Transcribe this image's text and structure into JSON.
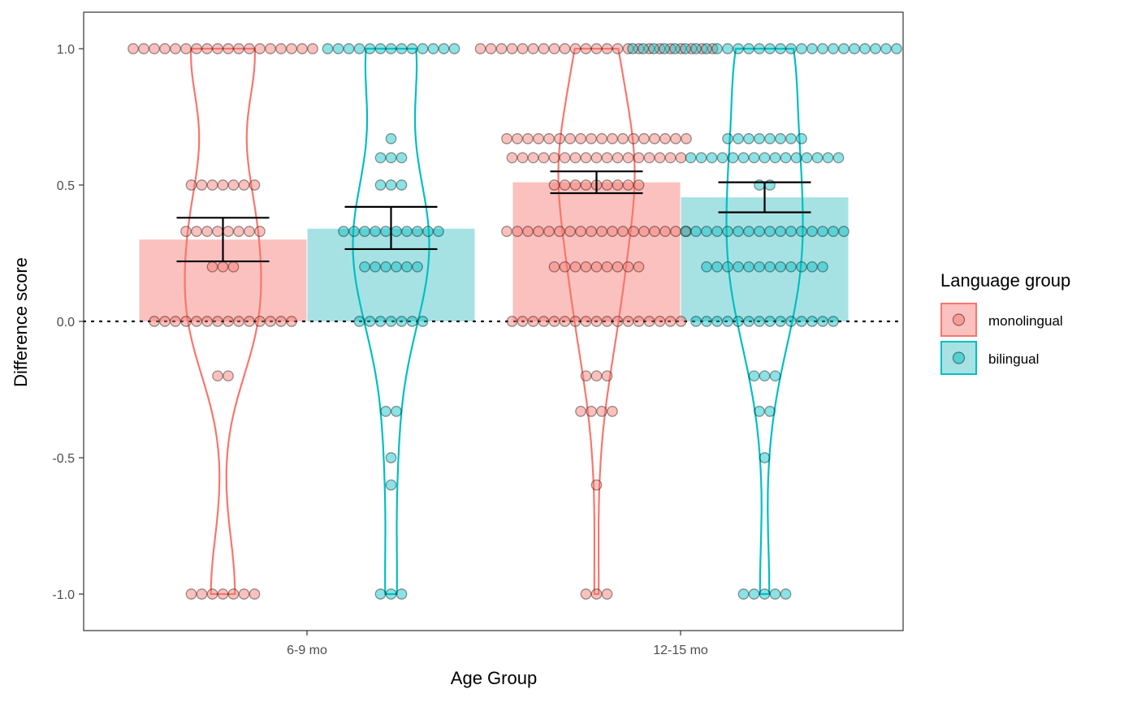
{
  "chart_data": {
    "type": "bar",
    "xlabel": "Age Group",
    "ylabel": "Difference score",
    "categories": [
      "6-9 mo",
      "12-15 mo"
    ],
    "ylim": [
      -1.1,
      1.14
    ],
    "yticks": [
      1.0,
      0.5,
      0.0,
      -0.5,
      -1.0
    ],
    "ytick_labels": [
      "1.0",
      "0.5",
      "0.0",
      "-0.5",
      "-1.0"
    ],
    "reference_line": 0,
    "grid": false,
    "legend": {
      "title": "Language group",
      "position": "right",
      "entries": [
        "monolingual",
        "bilingual"
      ]
    },
    "colors": {
      "monolingual": "#F8766D",
      "bilingual": "#00BFC4",
      "monolingual_fill": "#FBC1BE",
      "bilingual_fill": "#A6E2E3",
      "errorbar": "#000000"
    },
    "series": [
      {
        "name": "monolingual",
        "values": [
          0.3,
          0.51
        ],
        "error_low": [
          0.22,
          0.47
        ],
        "error_high": [
          0.38,
          0.55
        ],
        "points": [
          [
            {
              "y": 1.0,
              "n": 18
            },
            {
              "y": 0.5,
              "n": 7
            },
            {
              "y": 0.33,
              "n": 8
            },
            {
              "y": 0.2,
              "n": 3
            },
            {
              "y": 0.0,
              "n": 14
            },
            {
              "y": -0.2,
              "n": 2
            },
            {
              "y": -1.0,
              "n": 7
            }
          ],
          [
            {
              "y": 1.0,
              "n": 23
            },
            {
              "y": 0.67,
              "n": 18
            },
            {
              "y": 0.6,
              "n": 17
            },
            {
              "y": 0.5,
              "n": 9
            },
            {
              "y": 0.33,
              "n": 18
            },
            {
              "y": 0.2,
              "n": 9
            },
            {
              "y": 0.0,
              "n": 17
            },
            {
              "y": -0.2,
              "n": 3
            },
            {
              "y": -0.33,
              "n": 4
            },
            {
              "y": -0.6,
              "n": 1
            },
            {
              "y": -1.0,
              "n": 3
            }
          ]
        ]
      },
      {
        "name": "bilingual",
        "values": [
          0.34,
          0.455
        ],
        "error_low": [
          0.265,
          0.4
        ],
        "error_high": [
          0.42,
          0.51
        ],
        "points": [
          [
            {
              "y": 1.0,
              "n": 13
            },
            {
              "y": 0.67,
              "n": 1
            },
            {
              "y": 0.6,
              "n": 3
            },
            {
              "y": 0.5,
              "n": 3
            },
            {
              "y": 0.33,
              "n": 10
            },
            {
              "y": 0.2,
              "n": 6
            },
            {
              "y": 0.0,
              "n": 7
            },
            {
              "y": -0.33,
              "n": 2
            },
            {
              "y": -0.5,
              "n": 1
            },
            {
              "y": -0.6,
              "n": 1
            },
            {
              "y": -1.0,
              "n": 3
            }
          ]
        ],
        "points_12_15": [
          {
            "y": 1.0,
            "n": 26
          },
          {
            "y": 0.67,
            "n": 8
          },
          {
            "y": 0.6,
            "n": 15
          },
          {
            "y": 0.5,
            "n": 2
          },
          {
            "y": 0.33,
            "n": 16
          },
          {
            "y": 0.2,
            "n": 12
          },
          {
            "y": 0.0,
            "n": 14
          },
          {
            "y": -0.2,
            "n": 3
          },
          {
            "y": -0.33,
            "n": 2
          },
          {
            "y": -0.5,
            "n": 1
          },
          {
            "y": -1.0,
            "n": 5
          }
        ]
      }
    ]
  }
}
